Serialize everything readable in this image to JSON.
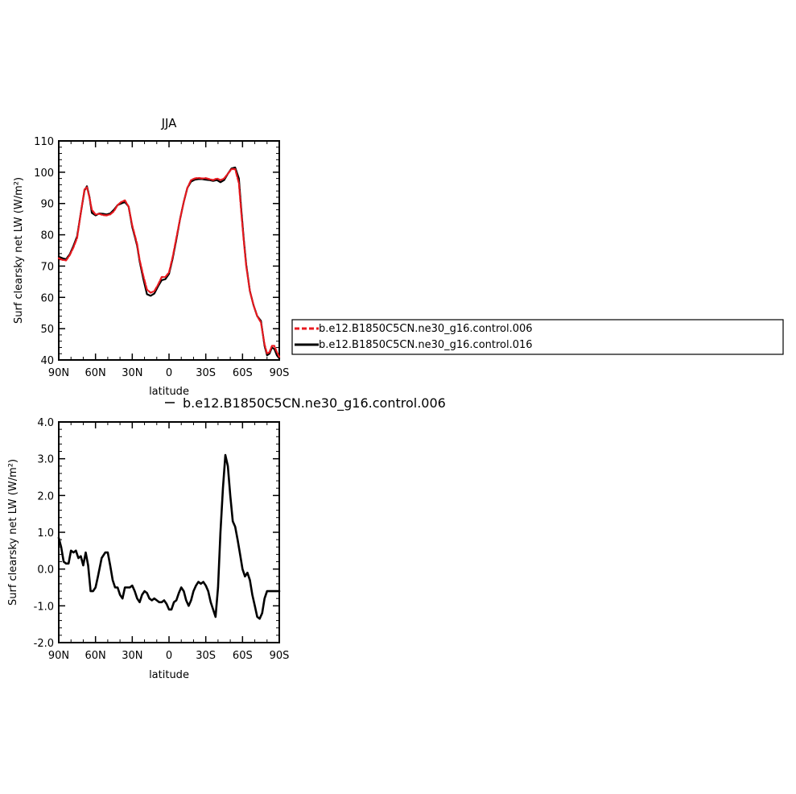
{
  "chart_data": [
    {
      "type": "line",
      "title": "JJA",
      "xlabel": "latitude",
      "ylabel": "Surf clearsky net LW (W/m²)",
      "xlim": [
        90,
        -90
      ],
      "ylim": [
        40,
        110
      ],
      "xticks": [
        90,
        60,
        30,
        0,
        -30,
        -60,
        -90
      ],
      "xticklabels": [
        "90N",
        "60N",
        "30N",
        "0",
        "30S",
        "60S",
        "90S"
      ],
      "yticks": [
        40,
        50,
        60,
        70,
        80,
        90,
        100,
        110
      ],
      "yticklabels": [
        "40",
        "50",
        "60",
        "70",
        "80",
        "90",
        "100",
        "110"
      ],
      "legend": {
        "placement": "right, outside plot",
        "entries": [
          "b.e12.B1850C5CN.ne30_g16.control.006",
          "b.e12.B1850C5CN.ne30_g16.control.016"
        ]
      },
      "series": [
        {
          "name": "b.e12.B1850C5CN.ne30_g16.control.006",
          "color": "#e8191f",
          "style": "dashed",
          "x": [
            90,
            87,
            84,
            81,
            78,
            75,
            72,
            69,
            67,
            65,
            63,
            60,
            57,
            54,
            51,
            48,
            45,
            42,
            39,
            36,
            33,
            30,
            28,
            26,
            24,
            21,
            18,
            15,
            12,
            9,
            6,
            3,
            0,
            -3,
            -6,
            -9,
            -12,
            -15,
            -18,
            -21,
            -24,
            -27,
            -30,
            -33,
            -36,
            -39,
            -42,
            -45,
            -48,
            -51,
            -54,
            -57,
            -59,
            -61,
            -63,
            -66,
            -69,
            -72,
            -75,
            -78,
            -80,
            -82,
            -84,
            -86,
            -88,
            -90
          ],
          "y": [
            72.5,
            72.0,
            71.8,
            73.5,
            76.0,
            79.0,
            87.0,
            94.5,
            95.2,
            92.0,
            88.0,
            86.5,
            86.7,
            86.3,
            86.2,
            86.5,
            87.5,
            89.5,
            90.5,
            91.0,
            89.0,
            83.0,
            80.0,
            77.0,
            72.0,
            67.0,
            62.5,
            61.5,
            62.0,
            64.0,
            66.5,
            66.5,
            68.0,
            73.0,
            79.0,
            85.0,
            90.5,
            95.0,
            97.5,
            98.0,
            98.2,
            98.0,
            98.1,
            97.8,
            97.5,
            98.0,
            97.5,
            98.0,
            99.5,
            101.0,
            101.0,
            96.5,
            87.0,
            78.0,
            70.0,
            62.0,
            57.5,
            54.0,
            52.0,
            45.0,
            42.0,
            42.5,
            44.5,
            44.5,
            42.5,
            41.0
          ]
        },
        {
          "name": "b.e12.B1850C5CN.ne30_g16.control.016",
          "color": "#000000",
          "style": "solid",
          "x": [
            90,
            87,
            84,
            81,
            78,
            75,
            72,
            69,
            67,
            65,
            63,
            60,
            57,
            54,
            51,
            48,
            45,
            42,
            39,
            36,
            33,
            30,
            28,
            26,
            24,
            21,
            18,
            15,
            12,
            9,
            6,
            3,
            0,
            -3,
            -6,
            -9,
            -12,
            -15,
            -18,
            -21,
            -24,
            -27,
            -30,
            -33,
            -36,
            -39,
            -42,
            -45,
            -48,
            -51,
            -54,
            -57,
            -59,
            -61,
            -63,
            -66,
            -69,
            -72,
            -75,
            -78,
            -80,
            -82,
            -84,
            -86,
            -88,
            -90
          ],
          "y": [
            73.0,
            72.5,
            72.2,
            73.8,
            76.5,
            79.5,
            87.0,
            94.2,
            95.5,
            92.2,
            87.0,
            86.2,
            86.8,
            86.7,
            86.5,
            86.8,
            88.0,
            89.5,
            90.0,
            90.5,
            89.0,
            82.5,
            79.5,
            76.5,
            71.5,
            66.0,
            61.0,
            60.5,
            61.2,
            63.5,
            65.5,
            65.8,
            67.5,
            72.5,
            78.5,
            85.0,
            90.5,
            95.0,
            97.0,
            97.6,
            97.8,
            97.8,
            97.6,
            97.5,
            97.2,
            97.5,
            96.8,
            97.5,
            99.5,
            101.2,
            101.5,
            98.0,
            88.0,
            78.5,
            70.5,
            62.0,
            57.5,
            54.0,
            52.5,
            44.5,
            41.5,
            42.0,
            44.0,
            43.5,
            41.5,
            40.5
          ]
        }
      ]
    },
    {
      "type": "line",
      "title": "",
      "xlabel": "latitude",
      "ylabel": "Surf clearsky net LW (W/m²)",
      "xlim": [
        90,
        -90
      ],
      "ylim": [
        -2.0,
        4.0
      ],
      "xticks": [
        90,
        60,
        30,
        0,
        -30,
        -60,
        -90
      ],
      "xticklabels": [
        "90N",
        "60N",
        "30N",
        "0",
        "30S",
        "60S",
        "90S"
      ],
      "yticks": [
        -2.0,
        -1.0,
        0.0,
        1.0,
        2.0,
        3.0,
        4.0
      ],
      "yticklabels": [
        "-2.0",
        "-1.0",
        "0.0",
        "1.0",
        "2.0",
        "3.0",
        "4.0"
      ],
      "legend": {
        "placement": "top, above plot",
        "entries": [
          "b.e12.B1850C5CN.ne30_g16.control.006"
        ]
      },
      "series": [
        {
          "name": "b.e12.B1850C5CN.ne30_g16.control.006",
          "color": "#000000",
          "style": "solid",
          "x": [
            90,
            88,
            86,
            84,
            82,
            80,
            78,
            76,
            74,
            72,
            70,
            68,
            66,
            64,
            62,
            60,
            58,
            55,
            52,
            50,
            48,
            46,
            44,
            42,
            40,
            38,
            36,
            34,
            32,
            30,
            28,
            26,
            24,
            22,
            20,
            18,
            16,
            14,
            12,
            10,
            8,
            6,
            4,
            2,
            0,
            -2,
            -4,
            -6,
            -8,
            -10,
            -12,
            -14,
            -16,
            -18,
            -20,
            -22,
            -24,
            -26,
            -28,
            -30,
            -32,
            -34,
            -36,
            -38,
            -40,
            -42,
            -44,
            -46,
            -48,
            -50,
            -52,
            -54,
            -56,
            -58,
            -60,
            -62,
            -64,
            -66,
            -68,
            -70,
            -72,
            -74,
            -76,
            -78,
            -80,
            -82,
            -84,
            -86,
            -88,
            -90
          ],
          "y": [
            0.85,
            0.6,
            0.2,
            0.15,
            0.15,
            0.5,
            0.45,
            0.5,
            0.3,
            0.35,
            0.1,
            0.45,
            0.1,
            -0.6,
            -0.6,
            -0.5,
            -0.2,
            0.3,
            0.45,
            0.45,
            0.1,
            -0.3,
            -0.5,
            -0.5,
            -0.7,
            -0.8,
            -0.5,
            -0.5,
            -0.5,
            -0.45,
            -0.6,
            -0.8,
            -0.9,
            -0.7,
            -0.6,
            -0.65,
            -0.8,
            -0.85,
            -0.8,
            -0.85,
            -0.9,
            -0.9,
            -0.85,
            -0.95,
            -1.1,
            -1.1,
            -0.9,
            -0.85,
            -0.65,
            -0.5,
            -0.6,
            -0.85,
            -1.0,
            -0.85,
            -0.6,
            -0.45,
            -0.35,
            -0.4,
            -0.35,
            -0.45,
            -0.6,
            -0.9,
            -1.1,
            -1.3,
            -0.5,
            1.0,
            2.2,
            3.1,
            2.8,
            2.0,
            1.3,
            1.15,
            0.8,
            0.4,
            0.0,
            -0.2,
            -0.1,
            -0.3,
            -0.7,
            -1.0,
            -1.3,
            -1.35,
            -1.2,
            -0.8,
            -0.6,
            -0.6,
            -0.6,
            -0.6,
            -0.6,
            -0.6
          ]
        }
      ]
    }
  ]
}
